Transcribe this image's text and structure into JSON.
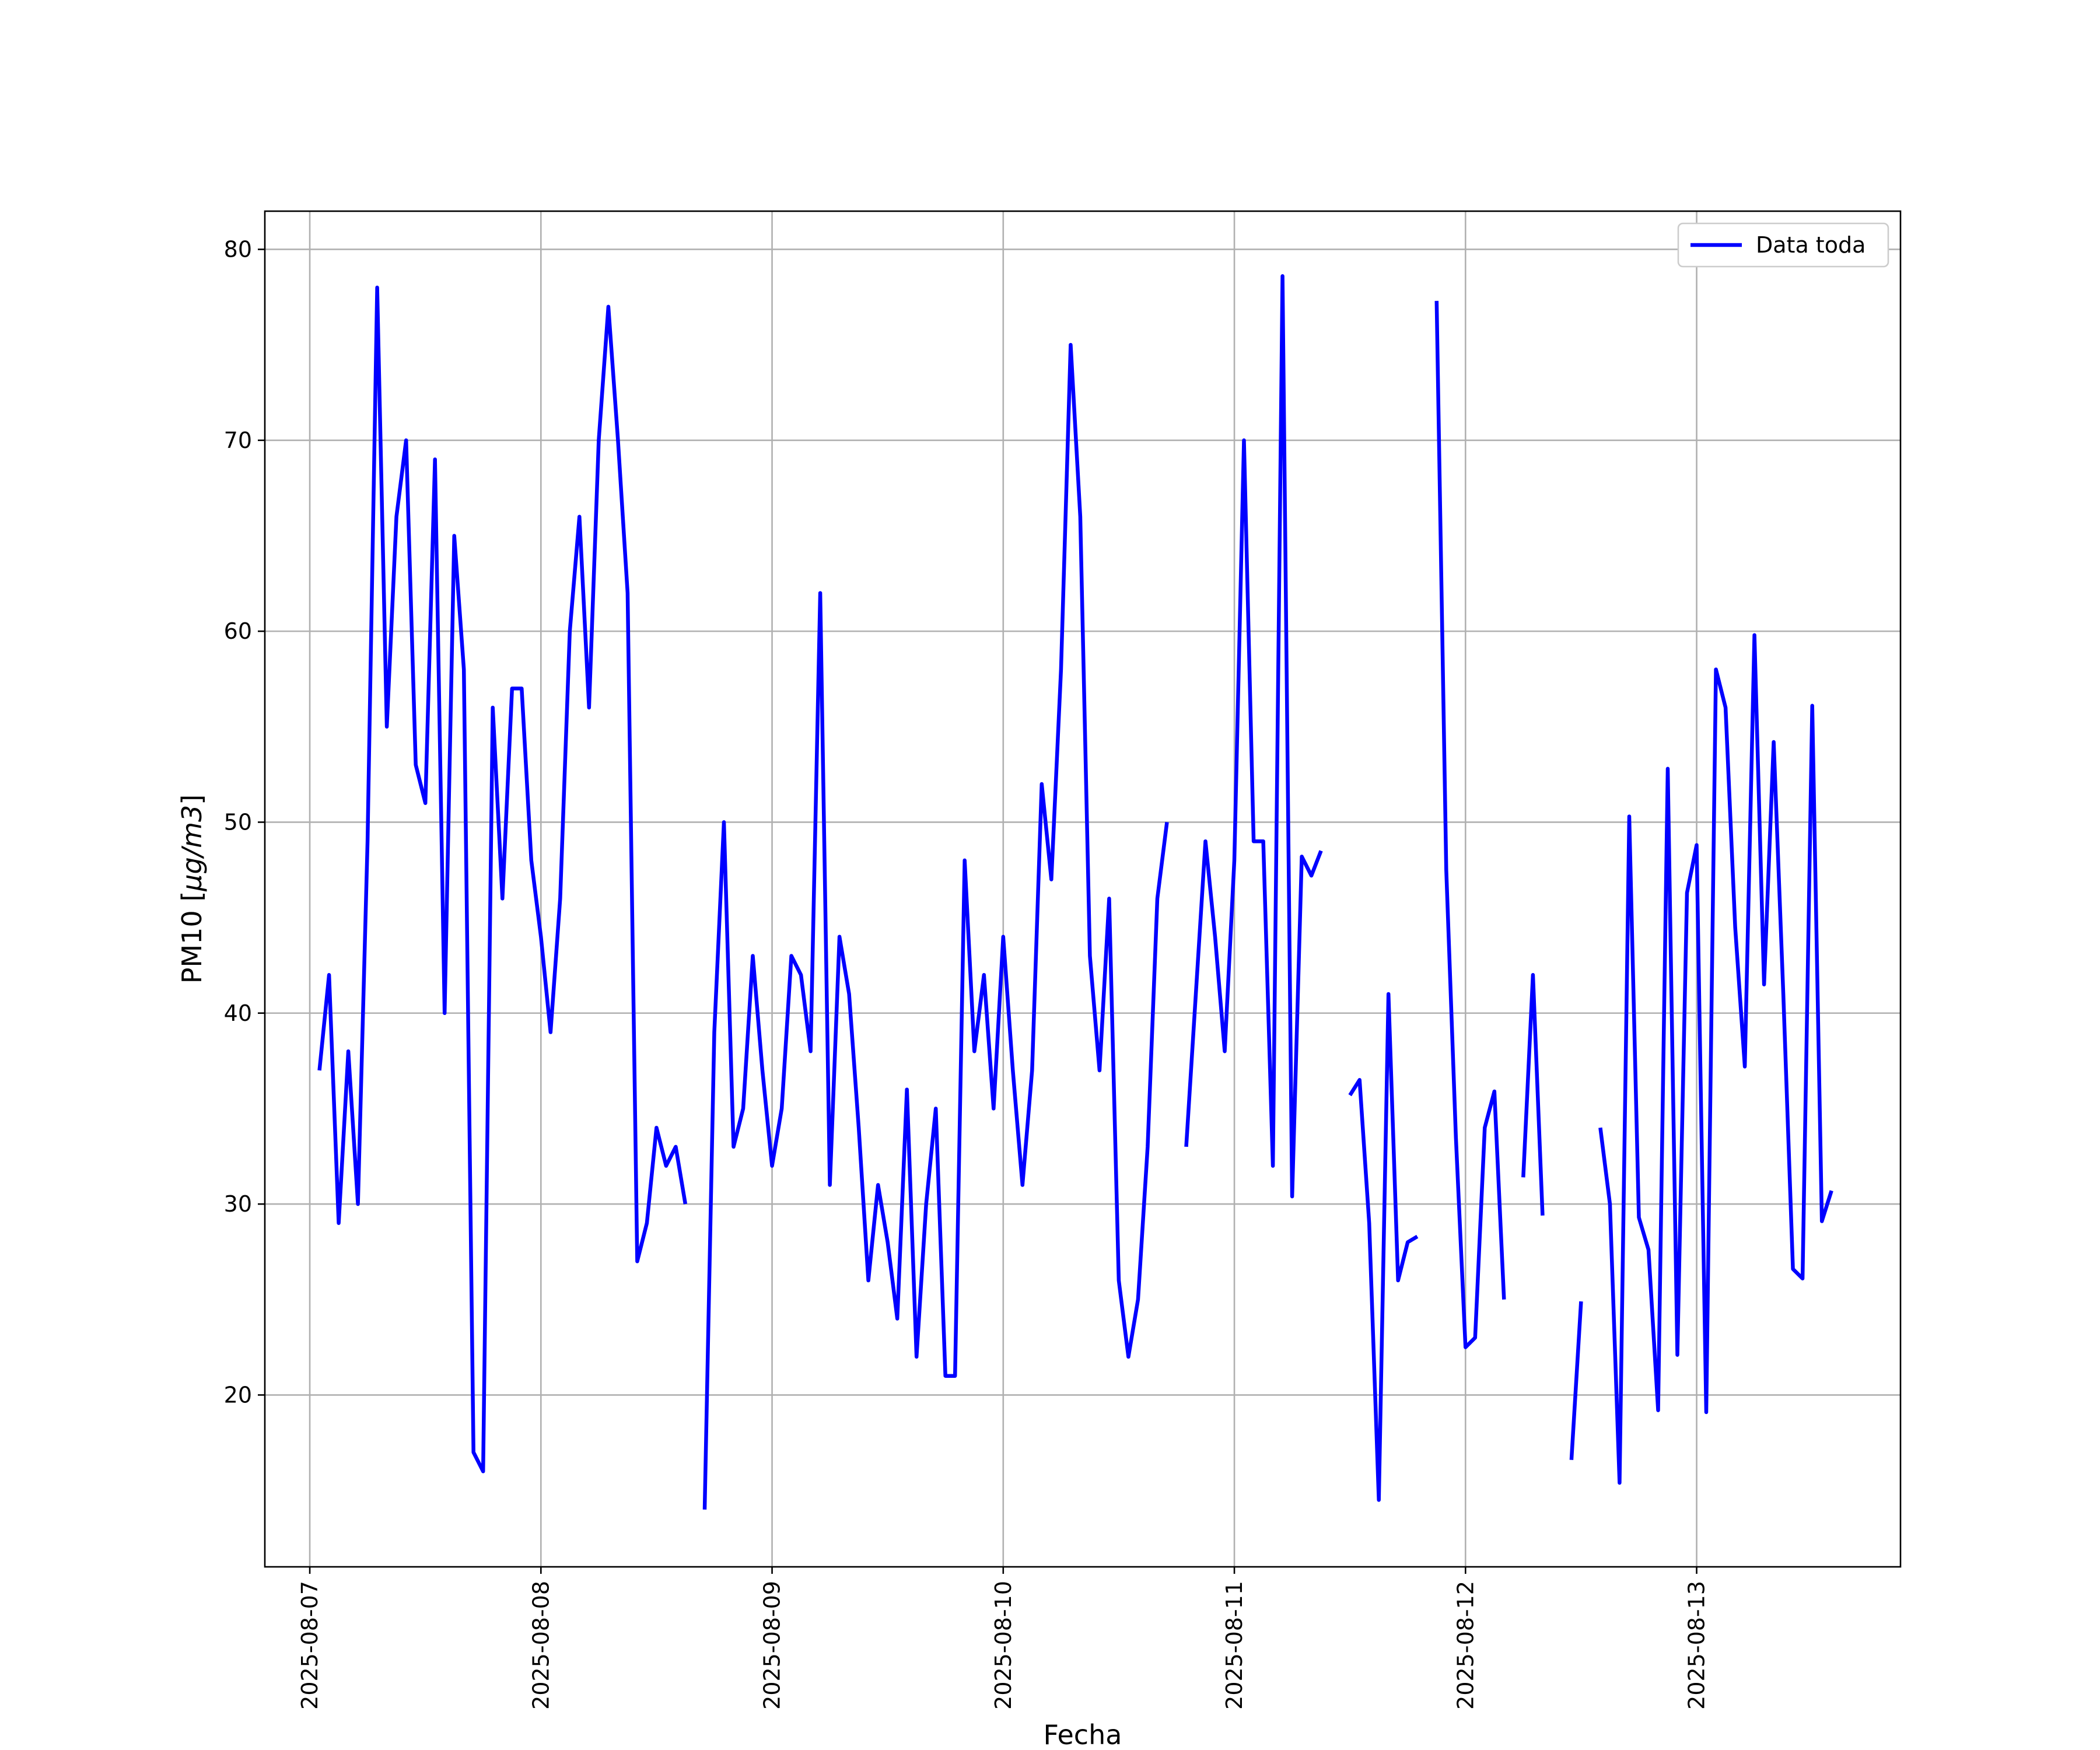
{
  "chart_data": {
    "type": "line",
    "title": "",
    "xlabel": "Fecha",
    "ylabel": "PM10 [$\\mu g/m3$]",
    "ylabel_prefix": "PM10 [",
    "ylabel_math": "μg/m3",
    "ylabel_suffix": "]",
    "x_tick_labels": [
      "2025-08-07",
      "2025-08-08",
      "2025-08-09",
      "2025-08-10",
      "2025-08-11",
      "2025-08-12",
      "2025-08-13"
    ],
    "y_tick_labels": [
      "20",
      "30",
      "40",
      "50",
      "60",
      "70",
      "80"
    ],
    "xlim": [
      "2025-08-06T19:20",
      "2025-08-13T21:10"
    ],
    "ylim": [
      11,
      82
    ],
    "grid": true,
    "legend_position": "top-right",
    "series": [
      {
        "name": "Data toda",
        "color": "#0000ff",
        "points": [
          [
            "2025-08-07T01:00",
            37
          ],
          [
            "2025-08-07T02:00",
            42
          ],
          [
            "2025-08-07T03:00",
            29
          ],
          [
            "2025-08-07T04:00",
            38
          ],
          [
            "2025-08-07T05:00",
            30
          ],
          [
            "2025-08-07T06:00",
            49
          ],
          [
            "2025-08-07T07:00",
            78
          ],
          [
            "2025-08-07T08:00",
            55
          ],
          [
            "2025-08-07T09:00",
            66
          ],
          [
            "2025-08-07T10:00",
            70
          ],
          [
            "2025-08-07T11:00",
            53
          ],
          [
            "2025-08-07T12:00",
            51
          ],
          [
            "2025-08-07T13:00",
            69
          ],
          [
            "2025-08-07T14:00",
            40
          ],
          [
            "2025-08-07T15:00",
            65
          ],
          [
            "2025-08-07T16:00",
            58
          ],
          [
            "2025-08-07T17:00",
            17
          ],
          [
            "2025-08-07T18:00",
            16
          ],
          [
            "2025-08-07T19:00",
            56
          ],
          [
            "2025-08-07T20:00",
            46
          ],
          [
            "2025-08-07T21:00",
            57
          ],
          [
            "2025-08-07T22:00",
            57
          ],
          [
            "2025-08-07T23:00",
            48
          ],
          [
            "2025-08-08T00:00",
            44
          ],
          [
            "2025-08-08T01:00",
            39
          ],
          [
            "2025-08-08T02:00",
            46
          ],
          [
            "2025-08-08T03:00",
            60
          ],
          [
            "2025-08-08T04:00",
            66
          ],
          [
            "2025-08-08T05:00",
            56
          ],
          [
            "2025-08-08T06:00",
            70
          ],
          [
            "2025-08-08T07:00",
            77
          ],
          [
            "2025-08-08T08:00",
            70
          ],
          [
            "2025-08-08T09:00",
            62
          ],
          [
            "2025-08-08T10:00",
            27
          ],
          [
            "2025-08-08T11:00",
            29
          ],
          [
            "2025-08-08T12:00",
            34
          ],
          [
            "2025-08-08T13:00",
            32
          ],
          [
            "2025-08-08T14:00",
            33
          ],
          [
            "2025-08-08T15:00",
            30
          ],
          null,
          [
            "2025-08-08T17:00",
            14
          ],
          [
            "2025-08-08T18:00",
            39
          ],
          [
            "2025-08-08T19:00",
            50
          ],
          [
            "2025-08-08T20:00",
            33
          ],
          [
            "2025-08-08T21:00",
            35
          ],
          [
            "2025-08-08T22:00",
            43
          ],
          [
            "2025-08-08T23:00",
            37
          ],
          [
            "2025-08-09T00:00",
            32
          ],
          [
            "2025-08-09T01:00",
            35
          ],
          [
            "2025-08-09T02:00",
            43
          ],
          [
            "2025-08-09T03:00",
            42
          ],
          [
            "2025-08-09T04:00",
            38
          ],
          [
            "2025-08-09T05:00",
            62
          ],
          [
            "2025-08-09T06:00",
            31
          ],
          [
            "2025-08-09T07:00",
            44
          ],
          [
            "2025-08-09T08:00",
            41
          ],
          [
            "2025-08-09T09:00",
            34
          ],
          [
            "2025-08-09T10:00",
            26
          ],
          [
            "2025-08-09T11:00",
            31
          ],
          [
            "2025-08-09T12:00",
            28
          ],
          [
            "2025-08-09T13:00",
            24
          ],
          [
            "2025-08-09T14:00",
            36
          ],
          [
            "2025-08-09T15:00",
            22
          ],
          [
            "2025-08-09T16:00",
            30
          ],
          [
            "2025-08-09T17:00",
            35
          ],
          [
            "2025-08-09T18:00",
            21
          ],
          [
            "2025-08-09T19:00",
            21
          ],
          [
            "2025-08-09T20:00",
            48
          ],
          [
            "2025-08-09T21:00",
            38
          ],
          [
            "2025-08-09T22:00",
            42
          ],
          [
            "2025-08-09T23:00",
            35
          ],
          [
            "2025-08-10T00:00",
            44
          ],
          [
            "2025-08-10T01:00",
            37
          ],
          [
            "2025-08-10T02:00",
            31
          ],
          [
            "2025-08-10T03:00",
            37
          ],
          [
            "2025-08-10T04:00",
            52
          ],
          [
            "2025-08-10T05:00",
            47
          ],
          [
            "2025-08-10T06:00",
            58
          ],
          [
            "2025-08-10T07:00",
            75
          ],
          [
            "2025-08-10T08:00",
            66
          ],
          [
            "2025-08-10T09:00",
            43
          ],
          [
            "2025-08-10T10:00",
            37
          ],
          [
            "2025-08-10T11:00",
            46
          ],
          [
            "2025-08-10T12:00",
            26
          ],
          [
            "2025-08-10T13:00",
            22
          ],
          [
            "2025-08-10T14:00",
            25
          ],
          [
            "2025-08-10T15:00",
            33
          ],
          [
            "2025-08-10T16:00",
            46
          ],
          [
            "2025-08-10T17:00",
            50
          ],
          null,
          [
            "2025-08-10T19:00",
            33
          ],
          [
            "2025-08-10T20:00",
            41
          ],
          [
            "2025-08-10T21:00",
            49
          ],
          [
            "2025-08-10T22:00",
            44
          ],
          [
            "2025-08-10T23:00",
            38
          ],
          [
            "2025-08-11T00:00",
            48
          ],
          [
            "2025-08-11T01:00",
            70
          ],
          [
            "2025-08-11T02:00",
            49
          ],
          [
            "2025-08-11T03:00",
            49
          ],
          [
            "2025-08-11T04:00",
            32
          ],
          [
            "2025-08-11T05:00",
            78.6
          ],
          [
            "2025-08-11T06:00",
            30.4
          ],
          [
            "2025-08-11T07:00",
            48.2
          ],
          [
            "2025-08-11T08:00",
            47.2
          ],
          [
            "2025-08-11T09:00",
            48.5
          ],
          null,
          [
            "2025-08-11T12:00",
            35.7
          ],
          [
            "2025-08-11T13:00",
            36.5
          ],
          [
            "2025-08-11T14:00",
            29
          ],
          [
            "2025-08-11T15:00",
            14.5
          ],
          [
            "2025-08-11T16:00",
            41
          ],
          [
            "2025-08-11T17:00",
            26
          ],
          [
            "2025-08-11T18:00",
            28
          ],
          [
            "2025-08-11T19:00",
            28.3
          ],
          null,
          [
            "2025-08-11T21:00",
            77.3
          ],
          [
            "2025-08-11T22:00",
            47.5
          ],
          [
            "2025-08-11T23:00",
            33.5
          ],
          [
            "2025-08-12T00:00",
            22.5
          ],
          [
            "2025-08-12T01:00",
            23
          ],
          [
            "2025-08-12T02:00",
            34
          ],
          [
            "2025-08-12T03:00",
            35.9
          ],
          [
            "2025-08-12T04:00",
            25
          ],
          null,
          [
            "2025-08-12T06:00",
            31.4
          ],
          [
            "2025-08-12T07:00",
            42
          ],
          [
            "2025-08-12T08:00",
            29.4
          ],
          null,
          [
            "2025-08-12T11:00",
            16.6
          ],
          [
            "2025-08-12T12:00",
            24.9
          ],
          null,
          [
            "2025-08-12T14:00",
            34
          ],
          [
            "2025-08-12T15:00",
            30
          ],
          [
            "2025-08-12T16:00",
            15.4
          ],
          [
            "2025-08-12T17:00",
            50.3
          ],
          [
            "2025-08-12T18:00",
            29.3
          ],
          [
            "2025-08-12T19:00",
            27.6
          ],
          [
            "2025-08-12T20:00",
            19.2
          ],
          [
            "2025-08-12T21:00",
            52.8
          ],
          [
            "2025-08-12T22:00",
            22.1
          ],
          [
            "2025-08-12T23:00",
            46.3
          ],
          [
            "2025-08-13T00:00",
            48.8
          ],
          [
            "2025-08-13T01:00",
            19.1
          ],
          [
            "2025-08-13T02:00",
            58
          ],
          [
            "2025-08-13T03:00",
            56
          ],
          [
            "2025-08-13T04:00",
            44.5
          ],
          [
            "2025-08-13T05:00",
            37.2
          ],
          [
            "2025-08-13T06:00",
            59.8
          ],
          [
            "2025-08-13T07:00",
            41.5
          ],
          [
            "2025-08-13T08:00",
            54.2
          ],
          [
            "2025-08-13T09:00",
            41
          ],
          [
            "2025-08-13T10:00",
            26.6
          ],
          [
            "2025-08-13T11:00",
            26.1
          ],
          [
            "2025-08-13T12:00",
            56.1
          ],
          [
            "2025-08-13T13:00",
            29.1
          ],
          [
            "2025-08-13T14:00",
            30.7
          ]
        ]
      }
    ]
  }
}
